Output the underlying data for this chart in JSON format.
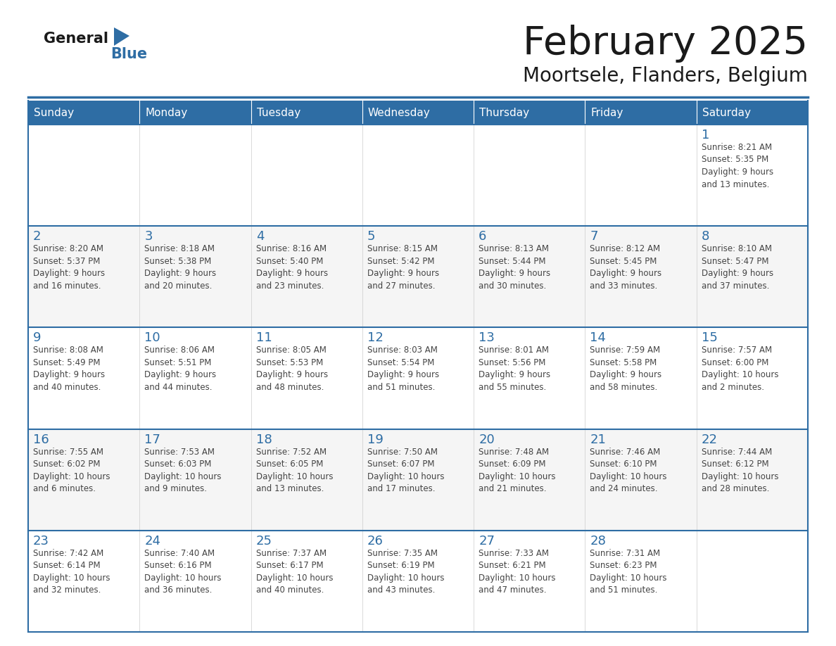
{
  "title": "February 2025",
  "subtitle": "Moortsele, Flanders, Belgium",
  "header_bg": "#2E6DA4",
  "header_text": "#FFFFFF",
  "cell_bg": "#FFFFFF",
  "cell_bg_alt": "#F2F2F2",
  "text_color": "#444444",
  "day_num_color": "#2E6DA4",
  "border_color": "#2E6DA4",
  "line_color": "#AAAAAA",
  "days_of_week": [
    "Sunday",
    "Monday",
    "Tuesday",
    "Wednesday",
    "Thursday",
    "Friday",
    "Saturday"
  ],
  "calendar": [
    [
      {
        "day": null,
        "info": ""
      },
      {
        "day": null,
        "info": ""
      },
      {
        "day": null,
        "info": ""
      },
      {
        "day": null,
        "info": ""
      },
      {
        "day": null,
        "info": ""
      },
      {
        "day": null,
        "info": ""
      },
      {
        "day": 1,
        "info": "Sunrise: 8:21 AM\nSunset: 5:35 PM\nDaylight: 9 hours\nand 13 minutes."
      }
    ],
    [
      {
        "day": 2,
        "info": "Sunrise: 8:20 AM\nSunset: 5:37 PM\nDaylight: 9 hours\nand 16 minutes."
      },
      {
        "day": 3,
        "info": "Sunrise: 8:18 AM\nSunset: 5:38 PM\nDaylight: 9 hours\nand 20 minutes."
      },
      {
        "day": 4,
        "info": "Sunrise: 8:16 AM\nSunset: 5:40 PM\nDaylight: 9 hours\nand 23 minutes."
      },
      {
        "day": 5,
        "info": "Sunrise: 8:15 AM\nSunset: 5:42 PM\nDaylight: 9 hours\nand 27 minutes."
      },
      {
        "day": 6,
        "info": "Sunrise: 8:13 AM\nSunset: 5:44 PM\nDaylight: 9 hours\nand 30 minutes."
      },
      {
        "day": 7,
        "info": "Sunrise: 8:12 AM\nSunset: 5:45 PM\nDaylight: 9 hours\nand 33 minutes."
      },
      {
        "day": 8,
        "info": "Sunrise: 8:10 AM\nSunset: 5:47 PM\nDaylight: 9 hours\nand 37 minutes."
      }
    ],
    [
      {
        "day": 9,
        "info": "Sunrise: 8:08 AM\nSunset: 5:49 PM\nDaylight: 9 hours\nand 40 minutes."
      },
      {
        "day": 10,
        "info": "Sunrise: 8:06 AM\nSunset: 5:51 PM\nDaylight: 9 hours\nand 44 minutes."
      },
      {
        "day": 11,
        "info": "Sunrise: 8:05 AM\nSunset: 5:53 PM\nDaylight: 9 hours\nand 48 minutes."
      },
      {
        "day": 12,
        "info": "Sunrise: 8:03 AM\nSunset: 5:54 PM\nDaylight: 9 hours\nand 51 minutes."
      },
      {
        "day": 13,
        "info": "Sunrise: 8:01 AM\nSunset: 5:56 PM\nDaylight: 9 hours\nand 55 minutes."
      },
      {
        "day": 14,
        "info": "Sunrise: 7:59 AM\nSunset: 5:58 PM\nDaylight: 9 hours\nand 58 minutes."
      },
      {
        "day": 15,
        "info": "Sunrise: 7:57 AM\nSunset: 6:00 PM\nDaylight: 10 hours\nand 2 minutes."
      }
    ],
    [
      {
        "day": 16,
        "info": "Sunrise: 7:55 AM\nSunset: 6:02 PM\nDaylight: 10 hours\nand 6 minutes."
      },
      {
        "day": 17,
        "info": "Sunrise: 7:53 AM\nSunset: 6:03 PM\nDaylight: 10 hours\nand 9 minutes."
      },
      {
        "day": 18,
        "info": "Sunrise: 7:52 AM\nSunset: 6:05 PM\nDaylight: 10 hours\nand 13 minutes."
      },
      {
        "day": 19,
        "info": "Sunrise: 7:50 AM\nSunset: 6:07 PM\nDaylight: 10 hours\nand 17 minutes."
      },
      {
        "day": 20,
        "info": "Sunrise: 7:48 AM\nSunset: 6:09 PM\nDaylight: 10 hours\nand 21 minutes."
      },
      {
        "day": 21,
        "info": "Sunrise: 7:46 AM\nSunset: 6:10 PM\nDaylight: 10 hours\nand 24 minutes."
      },
      {
        "day": 22,
        "info": "Sunrise: 7:44 AM\nSunset: 6:12 PM\nDaylight: 10 hours\nand 28 minutes."
      }
    ],
    [
      {
        "day": 23,
        "info": "Sunrise: 7:42 AM\nSunset: 6:14 PM\nDaylight: 10 hours\nand 32 minutes."
      },
      {
        "day": 24,
        "info": "Sunrise: 7:40 AM\nSunset: 6:16 PM\nDaylight: 10 hours\nand 36 minutes."
      },
      {
        "day": 25,
        "info": "Sunrise: 7:37 AM\nSunset: 6:17 PM\nDaylight: 10 hours\nand 40 minutes."
      },
      {
        "day": 26,
        "info": "Sunrise: 7:35 AM\nSunset: 6:19 PM\nDaylight: 10 hours\nand 43 minutes."
      },
      {
        "day": 27,
        "info": "Sunrise: 7:33 AM\nSunset: 6:21 PM\nDaylight: 10 hours\nand 47 minutes."
      },
      {
        "day": 28,
        "info": "Sunrise: 7:31 AM\nSunset: 6:23 PM\nDaylight: 10 hours\nand 51 minutes."
      },
      {
        "day": null,
        "info": ""
      }
    ]
  ]
}
